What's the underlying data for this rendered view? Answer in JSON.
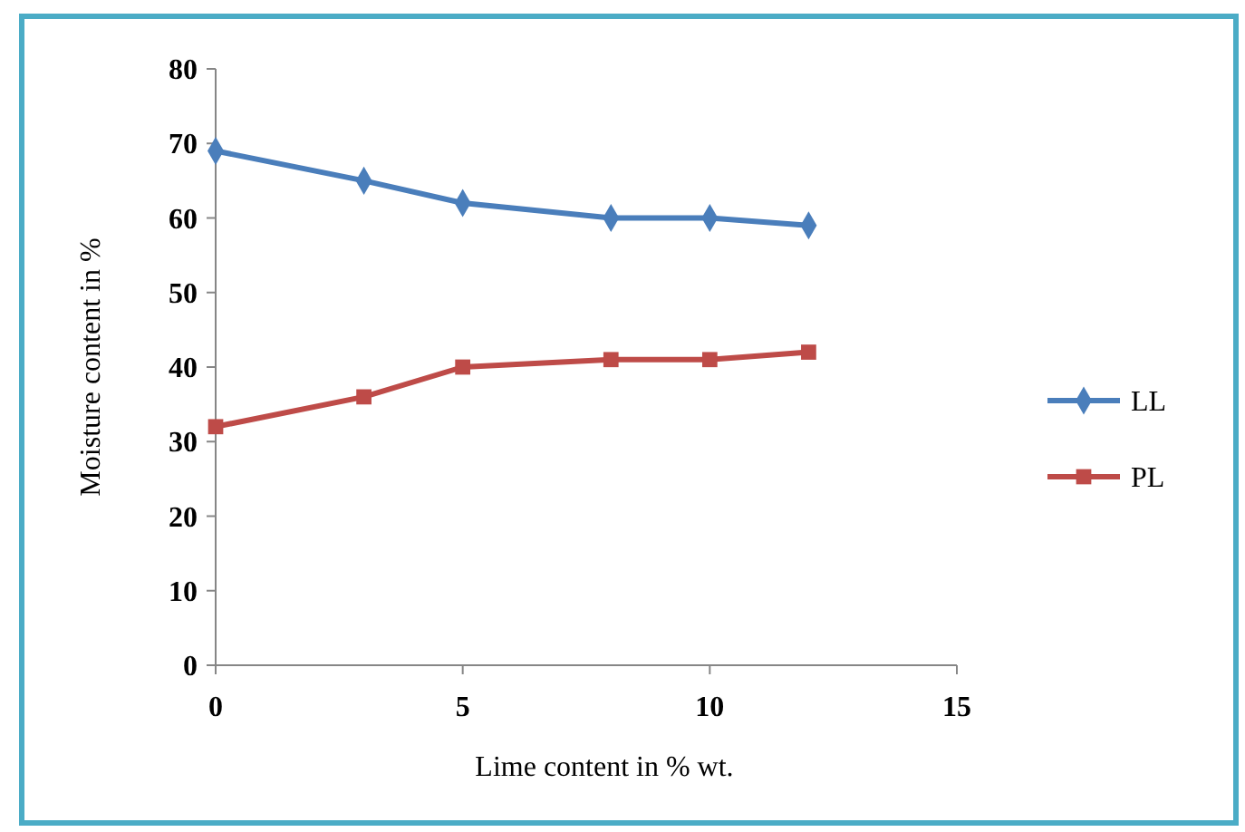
{
  "chart_data": {
    "type": "line",
    "xlabel": "Lime content in % wt.",
    "ylabel": "Moisture content in %",
    "x": [
      0,
      3,
      5,
      8,
      10,
      12
    ],
    "series": [
      {
        "name": "LL",
        "color": "#4a7ebb",
        "marker": "diamond",
        "values": [
          69,
          65,
          62,
          60,
          60,
          59
        ]
      },
      {
        "name": "PL",
        "color": "#be4b48",
        "marker": "square",
        "values": [
          32,
          36,
          40,
          41,
          41,
          42
        ]
      }
    ],
    "xlim": [
      0,
      15
    ],
    "xticks": [
      0,
      5,
      10,
      15
    ],
    "ylim": [
      0,
      80
    ],
    "yticks": [
      0,
      10,
      20,
      30,
      40,
      50,
      60,
      70,
      80
    ],
    "grid": false,
    "legend": "right"
  }
}
